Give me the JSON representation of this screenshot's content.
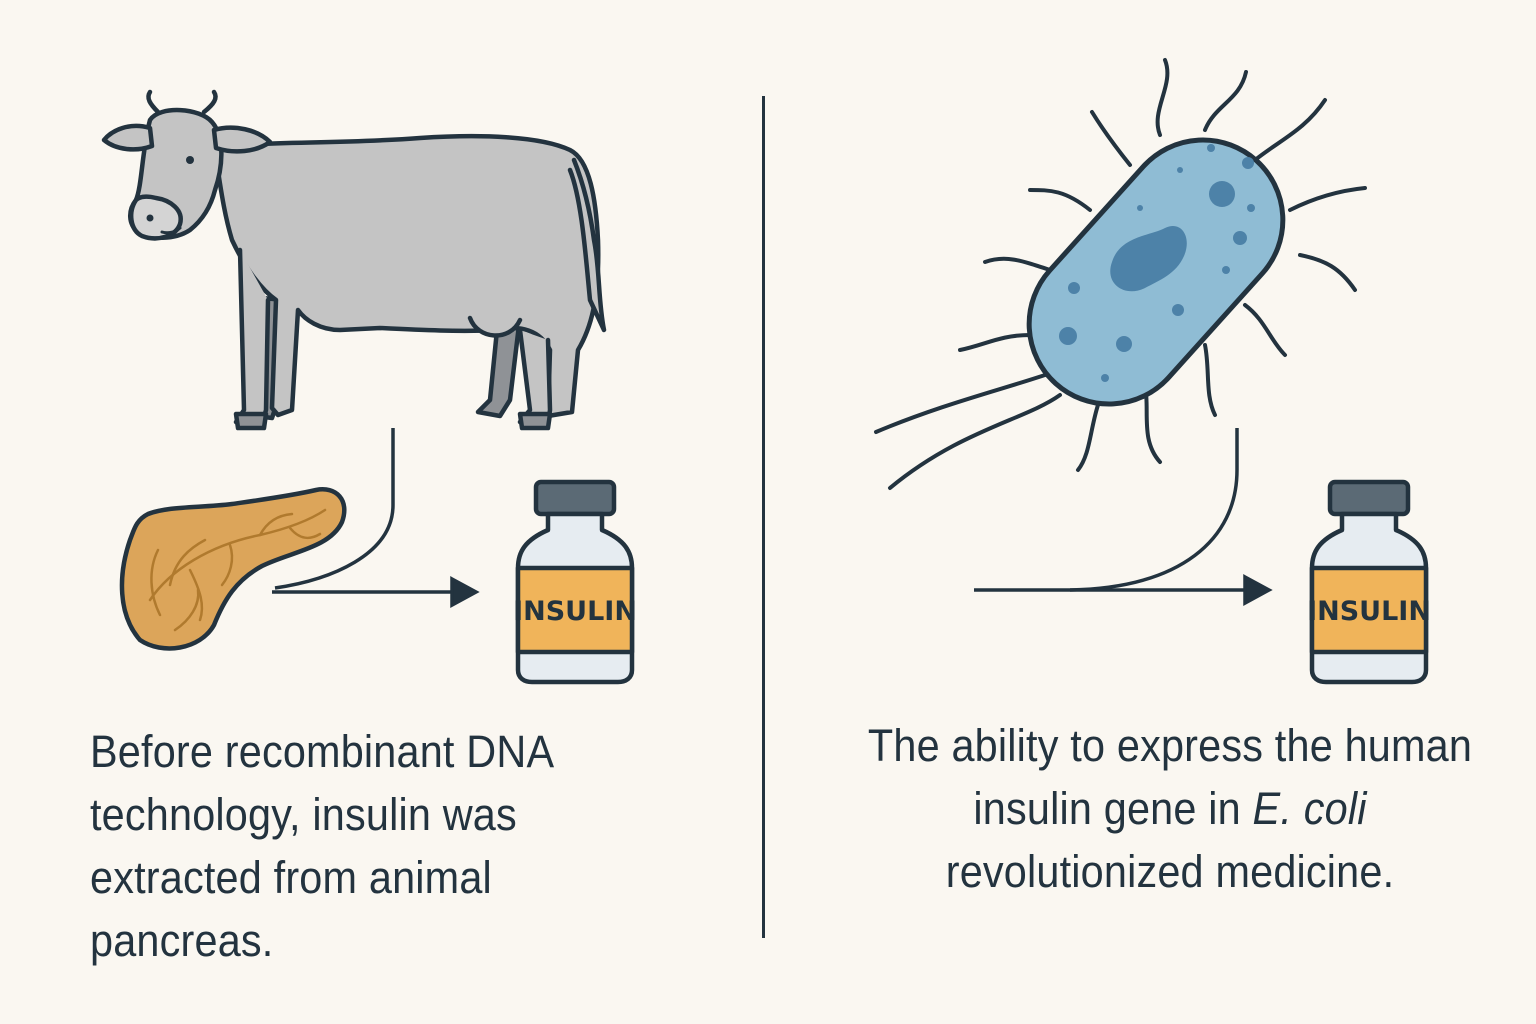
{
  "left_panel": {
    "caption": "Before recombinant DNA technology, insulin was extracted from animal pancreas.",
    "vial_label": "INSULIN",
    "icons": [
      "cow-icon",
      "pancreas-icon",
      "arrow-icon",
      "insulin-vial-icon"
    ]
  },
  "right_panel": {
    "caption_before": "The ability to express the human insulin gene in ",
    "caption_italic": "E. coli",
    "caption_after": " revolutionized medicine.",
    "vial_label": "INSULIN",
    "icons": [
      "bacterium-icon",
      "arrow-icon",
      "insulin-vial-icon"
    ]
  },
  "colors": {
    "background": "#faf7f1",
    "outline": "#23333f",
    "cow": "#c4c4c4",
    "pancreas": "#dca55a",
    "bacterium": "#8fbcd4",
    "vial_label": "#f0b45a",
    "vial_cap": "#5b6a75"
  }
}
